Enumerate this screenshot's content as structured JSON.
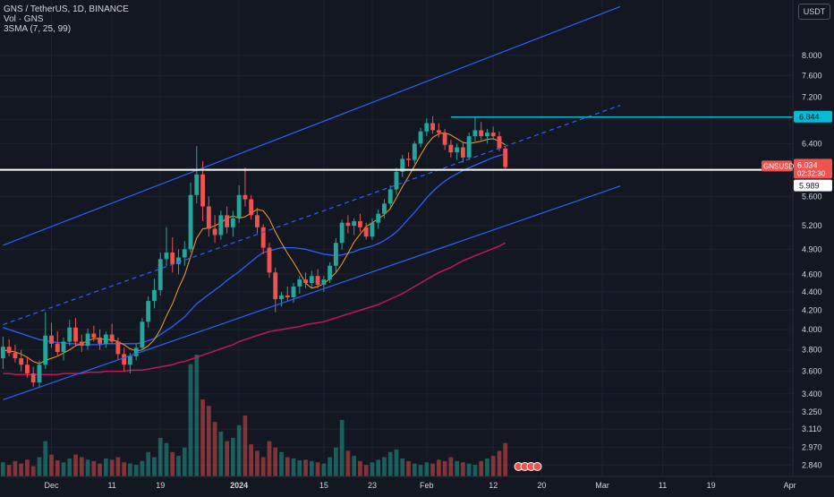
{
  "legend": {
    "symbol": "GNS / TetherUS, 1D, BINANCE",
    "volume": "Vol · GNS",
    "sma": "3SMA (7, 25, 99)"
  },
  "currency": "USDT",
  "price_badges": {
    "ticker": "GNSUSDT",
    "last_price": "6.034",
    "countdown": "02:32:30",
    "level_value": "5.989",
    "resistance_value": "6.844"
  },
  "colors": {
    "up": "#26a69a",
    "down": "#ef5350",
    "sma7": "#f7a21b",
    "sma25": "#2962ff",
    "sma99": "#c2185b",
    "channel": "#2962ff",
    "resistance": "#00bcd4",
    "support": "#ffffff"
  },
  "chart_data": {
    "type": "candlestick",
    "y_scale": "log",
    "ylim": [
      2.76,
      9.2
    ],
    "y_ticks": [
      "8.000",
      "7.600",
      "7.200",
      "6.800",
      "6.400",
      "6.000",
      "5.600",
      "5.200",
      "4.900",
      "4.600",
      "4.400",
      "4.200",
      "4.000",
      "3.800",
      "3.600",
      "3.400",
      "3.250",
      "3.110",
      "2.970",
      "2.840"
    ],
    "x_ticks": [
      "Dec",
      "11",
      "19",
      "2024",
      "15",
      "23",
      "Feb",
      "12",
      "20",
      "Mar",
      "11",
      "19",
      "Apr"
    ],
    "x_range": [
      "2023-11-23",
      "2024-04-02"
    ],
    "candles": [
      {
        "o": 3.72,
        "h": 3.93,
        "l": 3.62,
        "c": 3.83
      },
      {
        "o": 3.83,
        "h": 3.9,
        "l": 3.74,
        "c": 3.77
      },
      {
        "o": 3.77,
        "h": 3.85,
        "l": 3.68,
        "c": 3.72
      },
      {
        "o": 3.72,
        "h": 3.8,
        "l": 3.6,
        "c": 3.66
      },
      {
        "o": 3.66,
        "h": 3.73,
        "l": 3.54,
        "c": 3.58
      },
      {
        "o": 3.58,
        "h": 3.64,
        "l": 3.46,
        "c": 3.5
      },
      {
        "o": 3.5,
        "h": 3.7,
        "l": 3.45,
        "c": 3.66
      },
      {
        "o": 3.66,
        "h": 4.18,
        "l": 3.62,
        "c": 3.94
      },
      {
        "o": 3.94,
        "h": 4.07,
        "l": 3.82,
        "c": 3.86
      },
      {
        "o": 3.86,
        "h": 3.98,
        "l": 3.74,
        "c": 3.78
      },
      {
        "o": 3.78,
        "h": 3.92,
        "l": 3.7,
        "c": 3.88
      },
      {
        "o": 3.88,
        "h": 4.1,
        "l": 3.84,
        "c": 4.02
      },
      {
        "o": 4.02,
        "h": 4.12,
        "l": 3.84,
        "c": 3.88
      },
      {
        "o": 3.88,
        "h": 3.95,
        "l": 3.78,
        "c": 3.84
      },
      {
        "o": 3.84,
        "h": 4.01,
        "l": 3.8,
        "c": 3.96
      },
      {
        "o": 3.96,
        "h": 4.04,
        "l": 3.88,
        "c": 3.92
      },
      {
        "o": 3.92,
        "h": 4.0,
        "l": 3.8,
        "c": 3.86
      },
      {
        "o": 3.86,
        "h": 3.98,
        "l": 3.82,
        "c": 3.95
      },
      {
        "o": 3.95,
        "h": 4.06,
        "l": 3.86,
        "c": 3.88
      },
      {
        "o": 3.88,
        "h": 3.92,
        "l": 3.7,
        "c": 3.76
      },
      {
        "o": 3.76,
        "h": 3.82,
        "l": 3.6,
        "c": 3.66
      },
      {
        "o": 3.66,
        "h": 3.77,
        "l": 3.58,
        "c": 3.74
      },
      {
        "o": 3.74,
        "h": 3.86,
        "l": 3.7,
        "c": 3.82
      },
      {
        "o": 3.82,
        "h": 4.12,
        "l": 3.8,
        "c": 4.08
      },
      {
        "o": 4.08,
        "h": 4.35,
        "l": 4.02,
        "c": 4.3
      },
      {
        "o": 4.3,
        "h": 4.55,
        "l": 4.22,
        "c": 4.42
      },
      {
        "o": 4.42,
        "h": 4.86,
        "l": 4.36,
        "c": 4.78
      },
      {
        "o": 4.78,
        "h": 5.18,
        "l": 4.7,
        "c": 4.86
      },
      {
        "o": 4.86,
        "h": 5.05,
        "l": 4.62,
        "c": 4.72
      },
      {
        "o": 4.72,
        "h": 4.9,
        "l": 4.6,
        "c": 4.8
      },
      {
        "o": 4.8,
        "h": 5.0,
        "l": 4.7,
        "c": 4.9
      },
      {
        "o": 4.9,
        "h": 5.8,
        "l": 4.86,
        "c": 5.62
      },
      {
        "o": 5.62,
        "h": 6.36,
        "l": 5.5,
        "c": 5.92
      },
      {
        "o": 5.92,
        "h": 6.12,
        "l": 5.26,
        "c": 5.46
      },
      {
        "o": 5.46,
        "h": 5.6,
        "l": 5.06,
        "c": 5.16
      },
      {
        "o": 5.16,
        "h": 5.34,
        "l": 4.98,
        "c": 5.08
      },
      {
        "o": 5.08,
        "h": 5.4,
        "l": 5.02,
        "c": 5.34
      },
      {
        "o": 5.34,
        "h": 5.46,
        "l": 5.1,
        "c": 5.18
      },
      {
        "o": 5.18,
        "h": 5.4,
        "l": 5.06,
        "c": 5.3
      },
      {
        "o": 5.3,
        "h": 5.76,
        "l": 5.24,
        "c": 5.62
      },
      {
        "o": 5.62,
        "h": 6.02,
        "l": 5.46,
        "c": 5.56
      },
      {
        "o": 5.56,
        "h": 5.62,
        "l": 5.28,
        "c": 5.34
      },
      {
        "o": 5.34,
        "h": 5.44,
        "l": 5.1,
        "c": 5.18
      },
      {
        "o": 5.18,
        "h": 5.22,
        "l": 4.84,
        "c": 4.92
      },
      {
        "o": 4.92,
        "h": 4.98,
        "l": 4.56,
        "c": 4.62
      },
      {
        "o": 4.62,
        "h": 4.68,
        "l": 4.18,
        "c": 4.32
      },
      {
        "o": 4.32,
        "h": 4.4,
        "l": 4.24,
        "c": 4.36
      },
      {
        "o": 4.36,
        "h": 4.46,
        "l": 4.3,
        "c": 4.34
      },
      {
        "o": 4.34,
        "h": 4.5,
        "l": 4.28,
        "c": 4.46
      },
      {
        "o": 4.46,
        "h": 4.58,
        "l": 4.38,
        "c": 4.54
      },
      {
        "o": 4.54,
        "h": 4.62,
        "l": 4.44,
        "c": 4.5
      },
      {
        "o": 4.5,
        "h": 4.64,
        "l": 4.44,
        "c": 4.58
      },
      {
        "o": 4.58,
        "h": 4.66,
        "l": 4.44,
        "c": 4.48
      },
      {
        "o": 4.48,
        "h": 4.58,
        "l": 4.4,
        "c": 4.54
      },
      {
        "o": 4.54,
        "h": 4.74,
        "l": 4.5,
        "c": 4.7
      },
      {
        "o": 4.7,
        "h": 5.04,
        "l": 4.62,
        "c": 4.98
      },
      {
        "o": 4.98,
        "h": 5.28,
        "l": 4.9,
        "c": 5.24
      },
      {
        "o": 5.24,
        "h": 5.34,
        "l": 5.1,
        "c": 5.2
      },
      {
        "o": 5.2,
        "h": 5.3,
        "l": 5.08,
        "c": 5.26
      },
      {
        "o": 5.26,
        "h": 5.36,
        "l": 5.12,
        "c": 5.18
      },
      {
        "o": 5.18,
        "h": 5.24,
        "l": 5.02,
        "c": 5.06
      },
      {
        "o": 5.06,
        "h": 5.3,
        "l": 5.02,
        "c": 5.24
      },
      {
        "o": 5.24,
        "h": 5.42,
        "l": 5.16,
        "c": 5.36
      },
      {
        "o": 5.36,
        "h": 5.56,
        "l": 5.3,
        "c": 5.5
      },
      {
        "o": 5.5,
        "h": 5.76,
        "l": 5.44,
        "c": 5.7
      },
      {
        "o": 5.7,
        "h": 6.02,
        "l": 5.62,
        "c": 5.96
      },
      {
        "o": 5.96,
        "h": 6.22,
        "l": 5.88,
        "c": 6.16
      },
      {
        "o": 6.16,
        "h": 6.26,
        "l": 6.04,
        "c": 6.14
      },
      {
        "o": 6.14,
        "h": 6.44,
        "l": 6.08,
        "c": 6.4
      },
      {
        "o": 6.4,
        "h": 6.66,
        "l": 6.34,
        "c": 6.6
      },
      {
        "o": 6.6,
        "h": 6.82,
        "l": 6.52,
        "c": 6.74
      },
      {
        "o": 6.74,
        "h": 6.86,
        "l": 6.56,
        "c": 6.62
      },
      {
        "o": 6.62,
        "h": 6.74,
        "l": 6.5,
        "c": 6.58
      },
      {
        "o": 6.58,
        "h": 6.64,
        "l": 6.3,
        "c": 6.38
      },
      {
        "o": 6.38,
        "h": 6.46,
        "l": 6.18,
        "c": 6.26
      },
      {
        "o": 6.26,
        "h": 6.4,
        "l": 6.14,
        "c": 6.34
      },
      {
        "o": 6.34,
        "h": 6.42,
        "l": 6.1,
        "c": 6.18
      },
      {
        "o": 6.18,
        "h": 6.58,
        "l": 6.14,
        "c": 6.52
      },
      {
        "o": 6.52,
        "h": 6.84,
        "l": 6.44,
        "c": 6.62
      },
      {
        "o": 6.62,
        "h": 6.76,
        "l": 6.46,
        "c": 6.52
      },
      {
        "o": 6.52,
        "h": 6.64,
        "l": 6.4,
        "c": 6.58
      },
      {
        "o": 6.58,
        "h": 6.68,
        "l": 6.46,
        "c": 6.52
      },
      {
        "o": 6.52,
        "h": 6.6,
        "l": 6.28,
        "c": 6.32
      },
      {
        "o": 6.32,
        "h": 6.36,
        "l": 5.98,
        "c": 6.03
      }
    ],
    "volume": [
      22,
      18,
      24,
      20,
      26,
      16,
      30,
      55,
      34,
      25,
      22,
      28,
      34,
      30,
      26,
      24,
      20,
      28,
      26,
      30,
      22,
      20,
      18,
      24,
      38,
      30,
      60,
      52,
      38,
      32,
      45,
      175,
      190,
      120,
      110,
      85,
      70,
      55,
      60,
      80,
      95,
      50,
      40,
      30,
      55,
      45,
      38,
      30,
      28,
      25,
      26,
      24,
      22,
      20,
      30,
      45,
      88,
      40,
      32,
      24,
      18,
      22,
      26,
      30,
      38,
      42,
      28,
      24,
      20,
      18,
      22,
      20,
      26,
      24,
      30,
      24,
      22,
      20,
      18,
      24,
      28,
      32,
      40,
      52
    ],
    "sma7": [
      3.8,
      3.79,
      3.78,
      3.76,
      3.73,
      3.69,
      3.67,
      3.7,
      3.72,
      3.74,
      3.77,
      3.8,
      3.84,
      3.86,
      3.89,
      3.91,
      3.91,
      3.9,
      3.9,
      3.88,
      3.85,
      3.81,
      3.79,
      3.8,
      3.84,
      3.9,
      4.0,
      4.14,
      4.27,
      4.44,
      4.59,
      4.81,
      5.04,
      5.16,
      5.17,
      5.2,
      5.24,
      5.3,
      5.33,
      5.3,
      5.32,
      5.37,
      5.42,
      5.4,
      5.29,
      5.12,
      4.98,
      4.85,
      4.74,
      4.62,
      4.5,
      4.44,
      4.46,
      4.49,
      4.55,
      4.62,
      4.72,
      4.85,
      4.99,
      5.09,
      5.19,
      5.24,
      5.29,
      5.35,
      5.43,
      5.58,
      5.74,
      5.89,
      6.05,
      6.22,
      6.38,
      6.5,
      6.56,
      6.58,
      6.54,
      6.48,
      6.42,
      6.4,
      6.42,
      6.44,
      6.47,
      6.48,
      6.44,
      6.38
    ],
    "sma25": [
      4.02,
      4.0,
      3.98,
      3.96,
      3.94,
      3.92,
      3.9,
      3.89,
      3.88,
      3.87,
      3.87,
      3.86,
      3.86,
      3.85,
      3.85,
      3.85,
      3.85,
      3.86,
      3.86,
      3.86,
      3.86,
      3.86,
      3.86,
      3.87,
      3.89,
      3.91,
      3.95,
      3.99,
      4.03,
      4.08,
      4.13,
      4.2,
      4.27,
      4.32,
      4.37,
      4.42,
      4.47,
      4.53,
      4.58,
      4.63,
      4.69,
      4.75,
      4.81,
      4.86,
      4.88,
      4.9,
      4.92,
      4.92,
      4.92,
      4.91,
      4.9,
      4.88,
      4.86,
      4.84,
      4.83,
      4.82,
      4.83,
      4.85,
      4.87,
      4.9,
      4.92,
      4.94,
      4.97,
      5.01,
      5.06,
      5.12,
      5.2,
      5.29,
      5.38,
      5.48,
      5.58,
      5.67,
      5.75,
      5.82,
      5.88,
      5.93,
      5.98,
      6.02,
      6.06,
      6.1,
      6.14,
      6.18,
      6.21,
      6.23
    ],
    "sma99": [
      3.58,
      3.58,
      3.57,
      3.57,
      3.57,
      3.57,
      3.57,
      3.57,
      3.57,
      3.57,
      3.58,
      3.58,
      3.58,
      3.58,
      3.59,
      3.59,
      3.59,
      3.6,
      3.6,
      3.6,
      3.6,
      3.61,
      3.61,
      3.61,
      3.62,
      3.63,
      3.64,
      3.65,
      3.66,
      3.68,
      3.69,
      3.71,
      3.73,
      3.75,
      3.77,
      3.79,
      3.81,
      3.83,
      3.85,
      3.88,
      3.9,
      3.92,
      3.94,
      3.96,
      3.98,
      3.99,
      4.0,
      4.01,
      4.02,
      4.03,
      4.05,
      4.06,
      4.07,
      4.08,
      4.1,
      4.12,
      4.14,
      4.16,
      4.18,
      4.2,
      4.22,
      4.24,
      4.26,
      4.29,
      4.32,
      4.35,
      4.38,
      4.42,
      4.46,
      4.5,
      4.54,
      4.58,
      4.62,
      4.65,
      4.68,
      4.72,
      4.76,
      4.79,
      4.82,
      4.85,
      4.88,
      4.91,
      4.94,
      4.98
    ],
    "levels": {
      "resistance": 6.844,
      "support": 5.989,
      "last": 6.034
    },
    "channel": {
      "upper": [
        [
          0,
          4.95
        ],
        [
          102,
          9.05
        ]
      ],
      "mid": [
        [
          0,
          4.05
        ],
        [
          102,
          7.05
        ]
      ],
      "lower": [
        [
          0,
          3.35
        ],
        [
          102,
          5.75
        ]
      ]
    }
  }
}
